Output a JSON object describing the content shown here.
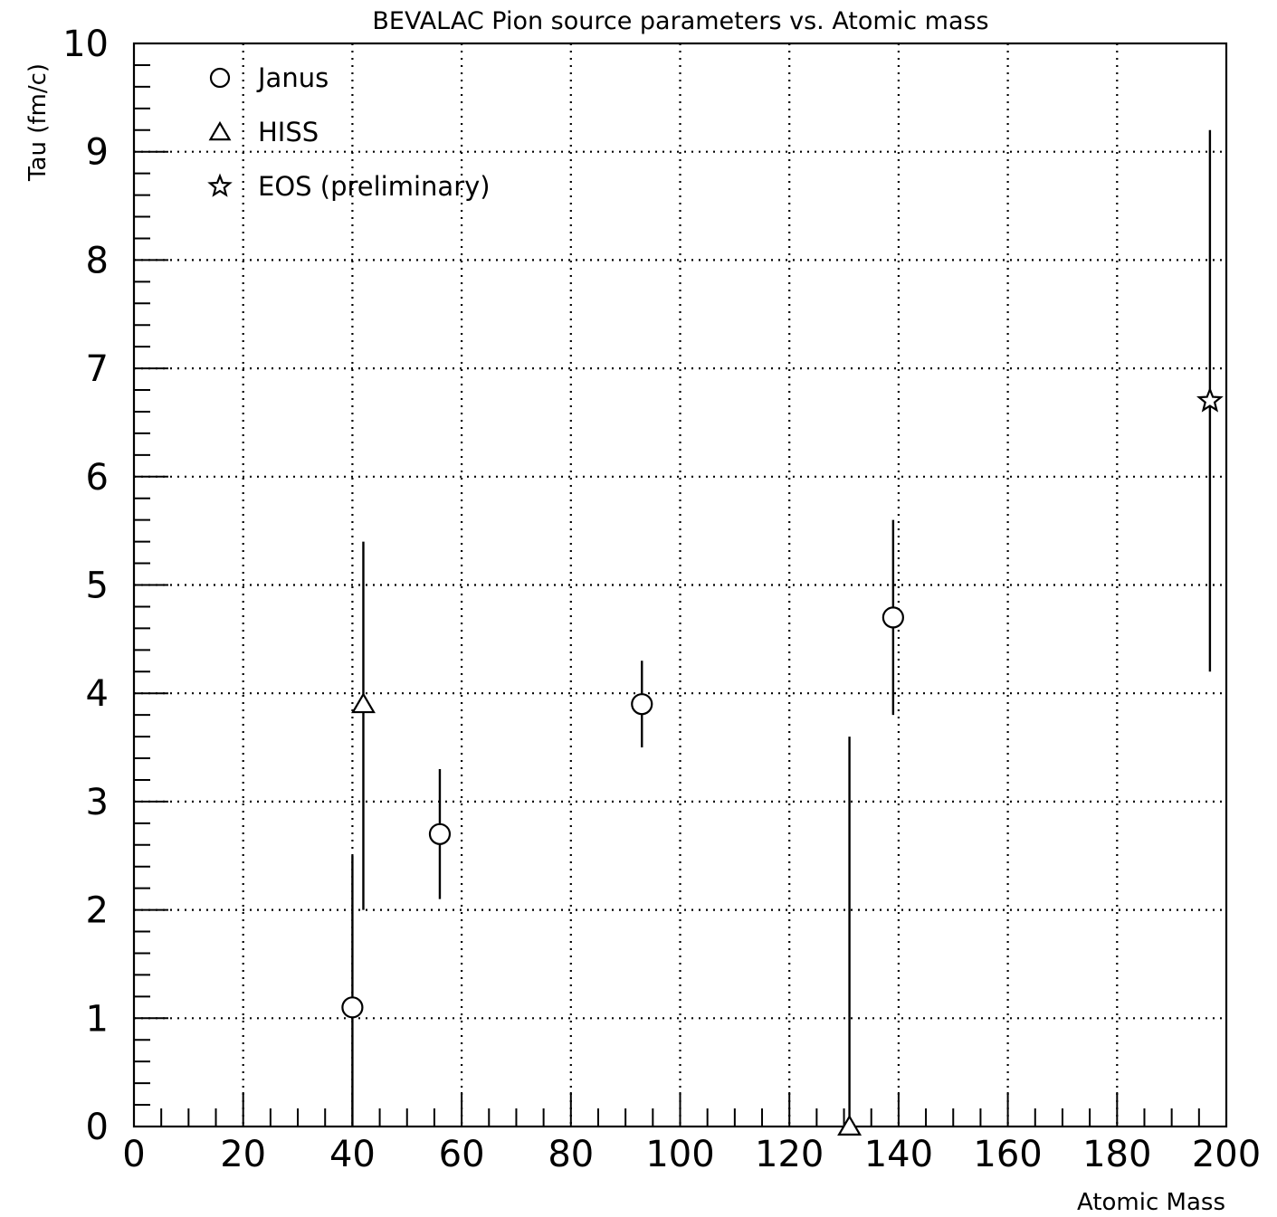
{
  "chart_data": {
    "type": "scatter",
    "title": "BEVALAC Pion source parameters vs. Atomic mass",
    "xlabel": "Atomic Mass",
    "ylabel": "Tau (fm/c)",
    "xlim": [
      0,
      200
    ],
    "ylim": [
      0,
      10
    ],
    "x_ticks": [
      "0",
      "20",
      "40",
      "60",
      "80",
      "100",
      "120",
      "140",
      "160",
      "180",
      "200"
    ],
    "y_ticks": [
      "0",
      "1",
      "2",
      "3",
      "4",
      "5",
      "6",
      "7",
      "8",
      "9",
      "10"
    ],
    "grid": true,
    "legend_position": "top-left",
    "series": [
      {
        "name": "Janus",
        "marker": "circle",
        "points": [
          {
            "x": 40,
            "y": 1.1,
            "err_low": 0.0,
            "err_high": 2.5
          },
          {
            "x": 56,
            "y": 2.7,
            "err_low": 2.1,
            "err_high": 3.3
          },
          {
            "x": 93,
            "y": 3.9,
            "err_low": 3.5,
            "err_high": 4.3
          },
          {
            "x": 139,
            "y": 4.7,
            "err_low": 3.8,
            "err_high": 5.6
          }
        ]
      },
      {
        "name": "HISS",
        "marker": "triangle",
        "points": [
          {
            "x": 42,
            "y": 3.9,
            "err_low": 2.0,
            "err_high": 5.4
          },
          {
            "x": 131,
            "y": 0.0,
            "err_low": 0.0,
            "err_high": 3.6
          }
        ]
      },
      {
        "name": "EOS (preliminary)",
        "marker": "star",
        "points": [
          {
            "x": 197,
            "y": 6.7,
            "err_low": 4.2,
            "err_high": 9.2
          }
        ]
      }
    ]
  }
}
